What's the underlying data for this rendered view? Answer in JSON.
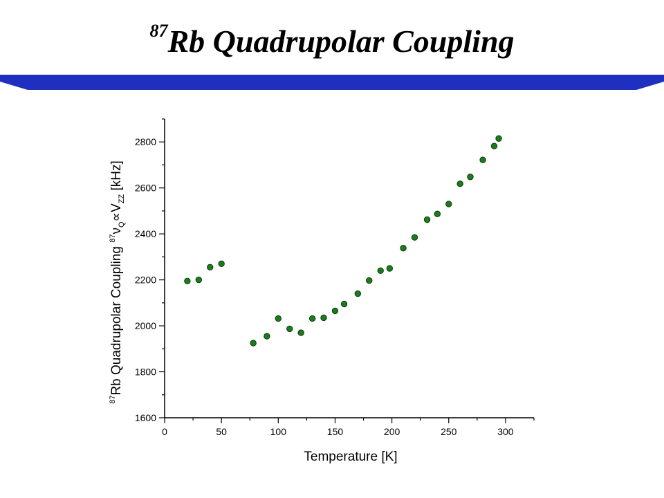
{
  "slide": {
    "title_prefix": "87",
    "title_main": "Rb Quadrupolar Coupling",
    "banner_color": "#1f2fbf"
  },
  "chart_data": {
    "type": "scatter",
    "title": "",
    "xlabel": "Temperature [K]",
    "ylabel": {
      "sup": "87",
      "text1": "Rb Quadrupolar Coupling ",
      "sup2": "87",
      "nu": "ν",
      "sub_q": "Q",
      "prop": "∝",
      "v": "V",
      "sub_zz": "ZZ",
      "unit": " [kHz]"
    },
    "xlim": [
      0,
      325
    ],
    "ylim": [
      1600,
      2900
    ],
    "xticks": [
      0,
      50,
      100,
      150,
      200,
      250,
      300
    ],
    "yticks": [
      1600,
      1800,
      2000,
      2200,
      2400,
      2600,
      2800
    ],
    "grid": false,
    "marker_color": "#1e7a1e",
    "series": [
      {
        "x": [
          20,
          30,
          40,
          50,
          78,
          90,
          100,
          110,
          120,
          130,
          140,
          150,
          158,
          170,
          180,
          190,
          198,
          210,
          220,
          231,
          240,
          250,
          260,
          269,
          280,
          290,
          294
        ],
        "y": [
          2195,
          2200,
          2255,
          2270,
          1925,
          1955,
          2032,
          1987,
          1970,
          2032,
          2035,
          2065,
          2095,
          2140,
          2197,
          2240,
          2250,
          2338,
          2385,
          2462,
          2487,
          2530,
          2618,
          2648,
          2722,
          2782,
          2815
        ]
      }
    ]
  }
}
